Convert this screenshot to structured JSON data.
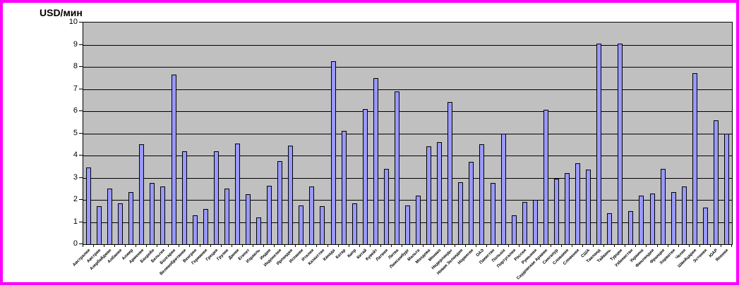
{
  "window": {
    "border_color": "#FF00FF",
    "background_color": "#FFFFFF"
  },
  "chart_data": {
    "type": "bar",
    "title": "USD/мин",
    "xlabel": "",
    "ylabel": "USD/мин",
    "ylim": [
      0,
      10
    ],
    "yticks": [
      0,
      1,
      2,
      3,
      4,
      5,
      6,
      7,
      8,
      9,
      10
    ],
    "grid": "horizontal",
    "legend_position": "none",
    "plot_background": "#C0C0C0",
    "bar_fill": "#9999FF",
    "bar_border": "#000000",
    "gridline_color": "#000000",
    "categories": [
      "Австралия",
      "Австрия",
      "Азербайджан",
      "Албания",
      "Алжир",
      "Армения",
      "Бахрейн",
      "Бельгия",
      "Болгария",
      "Великобритания",
      "Венгрия",
      "Германия",
      "Греция",
      "Грузия",
      "Дания",
      "Египет",
      "Израиль",
      "Индия",
      "Индонезия",
      "Ирландия",
      "Испания",
      "Италия",
      "Казахстан",
      "Канада",
      "Катар",
      "Кипр",
      "Китай",
      "Кувейт",
      "Латвия",
      "Литва",
      "Люксембург",
      "Мальта",
      "Молдова",
      "Монако",
      "Нидерланды",
      "Новая Зеландия",
      "Норвегия",
      "ОАЭ",
      "Пакистан",
      "Польша",
      "Португалия",
      "Россия",
      "Румыния",
      "Саудовская Аравия",
      "Сингапур",
      "Словакия",
      "Словения",
      "США",
      "Таиланд",
      "Тайвань",
      "Турция",
      "Узбекистан",
      "Украина",
      "Финляндия",
      "Франция",
      "Хорватия",
      "Чехия",
      "Швейцария",
      "Эстония",
      "ЮАР",
      "Япония"
    ],
    "values": [
      3.45,
      1.7,
      2.5,
      1.85,
      2.35,
      4.5,
      2.75,
      2.6,
      7.65,
      4.2,
      1.3,
      1.6,
      4.2,
      2.5,
      4.55,
      2.25,
      1.2,
      2.65,
      3.75,
      4.45,
      1.75,
      2.6,
      1.7,
      8.25,
      5.1,
      1.85,
      6.1,
      7.5,
      3.4,
      6.9,
      1.75,
      2.2,
      4.4,
      4.6,
      6.4,
      2.8,
      3.7,
      4.5,
      2.75,
      5.0,
      1.3,
      1.9,
      2.0,
      6.05,
      2.95,
      3.2,
      3.65,
      3.35,
      9.05,
      1.4,
      9.05,
      1.5,
      2.2,
      2.3,
      3.4,
      2.35,
      2.6,
      7.7,
      1.65,
      5.6,
      5.0
    ]
  }
}
